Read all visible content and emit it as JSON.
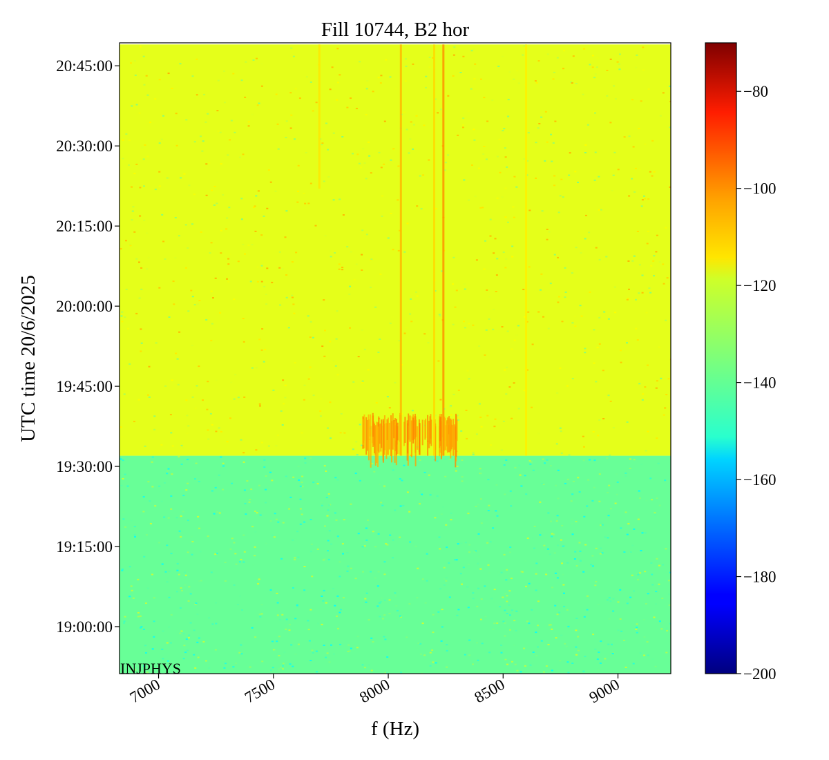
{
  "chart_data": {
    "type": "heatmap",
    "title": "Fill 10744, B2 hor",
    "xlabel": "f (Hz)",
    "ylabel": "UTC time 20/6/2025",
    "xlim": [
      6830,
      9230
    ],
    "x_ticks": [
      7000,
      7500,
      8000,
      8500,
      9000
    ],
    "x_tick_labels": [
      "7000",
      "7500",
      "8000",
      "8500",
      "9000"
    ],
    "y_ticks": [
      "19:00:00",
      "19:15:00",
      "19:30:00",
      "19:45:00",
      "20:00:00",
      "20:15:00",
      "20:30:00",
      "20:45:00"
    ],
    "y_tick_labels": [
      "19:00:00",
      "19:15:00",
      "19:30:00",
      "19:45:00",
      "20:00:00",
      "20:15:00",
      "20:30:00",
      "20:45:00"
    ],
    "ylim_minutes_after_1900": [
      -8.8,
      109.3
    ],
    "colorbar": {
      "colormap": "jet",
      "range": [
        -200,
        -70
      ],
      "ticks": [
        -80,
        -100,
        -120,
        -140,
        -160,
        -180,
        -200
      ],
      "tick_labels": [
        "−80",
        "−100",
        "−120",
        "−140",
        "−160",
        "−180",
        "−200"
      ]
    },
    "regions": [
      {
        "time_from": "18:51",
        "time_to": "19:32",
        "level_db": -138,
        "description": "uniform green/cyan noise"
      },
      {
        "time_from": "19:32",
        "time_to": "20:49",
        "level_db": -122,
        "description": "yellow-green noise"
      }
    ],
    "spectral_lines": [
      {
        "f": 8055,
        "from": "19:32",
        "to": "20:49",
        "level_db": -110
      },
      {
        "f": 8240,
        "from": "19:32",
        "to": "20:49",
        "level_db": -105
      },
      {
        "f": 8200,
        "from": "19:32",
        "to": "20:49",
        "level_db": -114
      },
      {
        "f": 8600,
        "from": "19:32",
        "to": "20:49",
        "level_db": -117
      },
      {
        "f": 7700,
        "from": "20:22",
        "to": "20:49",
        "level_db": -116
      }
    ],
    "burst": {
      "f_from": 7885,
      "f_to": 8300,
      "time_from": "19:32",
      "time_to": "19:40",
      "level_db": -108
    },
    "annotation": "INJPHYS"
  }
}
